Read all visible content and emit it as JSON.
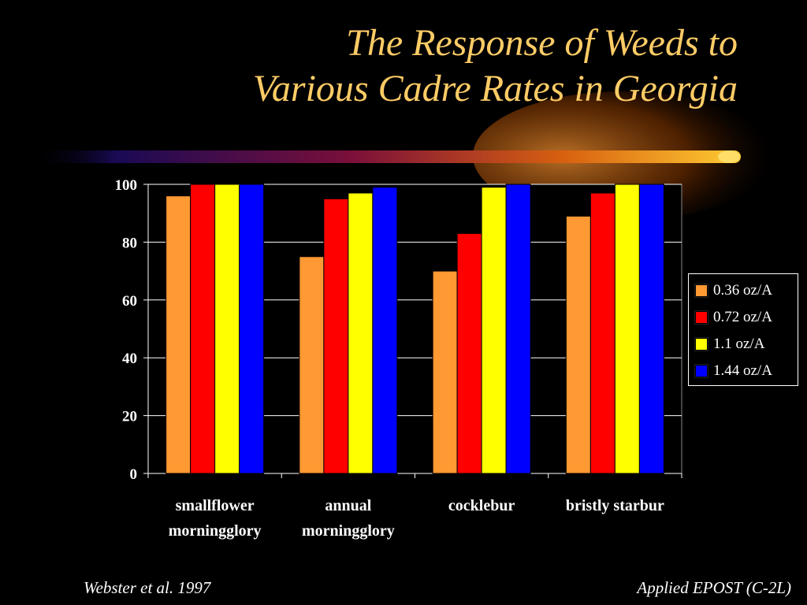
{
  "title_line1": "The Response of Weeds to",
  "title_line2": "Various Cadre Rates in Georgia",
  "footer_left": "Webster et al. 1997",
  "footer_right": "Applied EPOST (C-2L)",
  "colors": {
    "background": "#000000",
    "title": "#FFCC66"
  },
  "chart_data": {
    "type": "bar",
    "categories": [
      [
        "smallflower",
        "morningglory"
      ],
      [
        "annual",
        "morningglory"
      ],
      [
        "cocklebur"
      ],
      [
        "bristly starbur"
      ]
    ],
    "series": [
      {
        "name": "0.36 oz/A",
        "color": "#FF9933",
        "values": [
          96,
          75,
          70,
          89
        ]
      },
      {
        "name": "0.72 oz/A",
        "color": "#FF0000",
        "values": [
          100,
          95,
          83,
          97
        ]
      },
      {
        "name": "1.1 oz/A",
        "color": "#FFFF00",
        "values": [
          100,
          97,
          99,
          100
        ]
      },
      {
        "name": "1.44 oz/A",
        "color": "#0000FF",
        "values": [
          100,
          99,
          100,
          100
        ]
      }
    ],
    "yticks": [
      0,
      20,
      40,
      60,
      80,
      100
    ],
    "ylim": [
      0,
      100
    ],
    "grid": true,
    "legend_position": "right"
  }
}
